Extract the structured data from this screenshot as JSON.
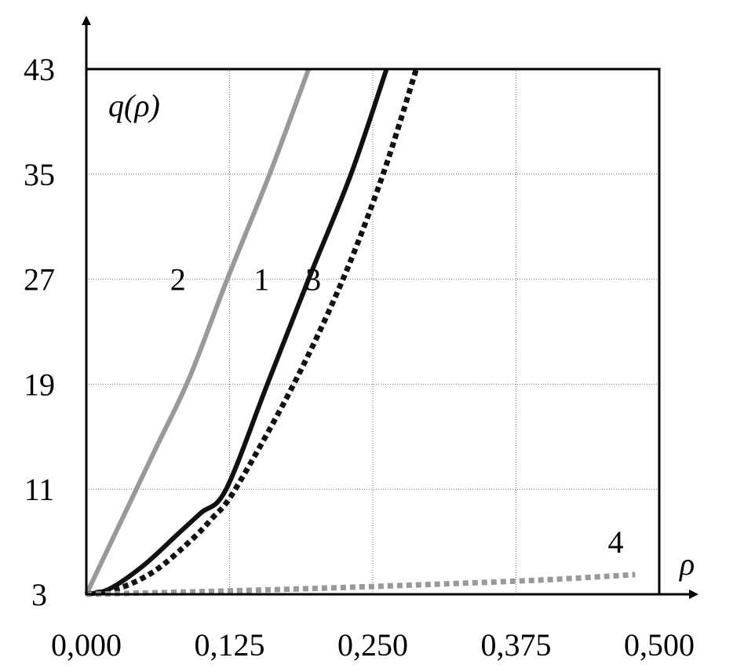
{
  "chart_data": {
    "type": "line",
    "title": "",
    "xlabel": "ρ",
    "ylabel": "q(ρ)",
    "xlim": [
      0,
      0.5
    ],
    "ylim": [
      3,
      43
    ],
    "grid": true,
    "x_ticks": [
      "0,000",
      "0,125",
      "0,250",
      "0,375",
      "0,500"
    ],
    "x_tick_values": [
      0,
      0.125,
      0.25,
      0.375,
      0.5
    ],
    "y_ticks": [
      "3",
      "11",
      "19",
      "27",
      "35",
      "43"
    ],
    "y_tick_values": [
      3,
      11,
      19,
      27,
      35,
      43
    ],
    "series": [
      {
        "name": "1",
        "style": "solid",
        "color": "#111111",
        "x": [
          0,
          0.02,
          0.05,
          0.08,
          0.1,
          0.122,
          0.158,
          0.194,
          0.231,
          0.262
        ],
        "y": [
          3,
          3.4,
          5.2,
          7.6,
          9.2,
          11,
          19,
          27,
          35,
          43
        ]
      },
      {
        "name": "2",
        "style": "solid",
        "color": "#999999",
        "x": [
          0,
          0.03,
          0.06,
          0.09,
          0.123,
          0.16,
          0.194
        ],
        "y": [
          3,
          8.5,
          14,
          19.5,
          27,
          35,
          43
        ]
      },
      {
        "name": "3",
        "style": "dotted",
        "color": "#111111",
        "x": [
          0,
          0.03,
          0.06,
          0.09,
          0.11,
          0.13,
          0.181,
          0.224,
          0.259,
          0.288
        ],
        "y": [
          3,
          3.5,
          4.8,
          7,
          8.8,
          11,
          19,
          27,
          35,
          43
        ]
      },
      {
        "name": "4",
        "style": "dotted",
        "color": "#999999",
        "x": [
          0,
          0.1,
          0.2,
          0.3,
          0.4,
          0.479
        ],
        "y": [
          3,
          3.2,
          3.45,
          3.75,
          4.1,
          4.5
        ]
      }
    ],
    "curve_labels": [
      {
        "text": "2",
        "x": 0.08,
        "y": 27
      },
      {
        "text": "1",
        "x": 0.153,
        "y": 27
      },
      {
        "text": "3",
        "x": 0.198,
        "y": 27
      },
      {
        "text": "4",
        "x": 0.462,
        "y": 7
      }
    ]
  }
}
